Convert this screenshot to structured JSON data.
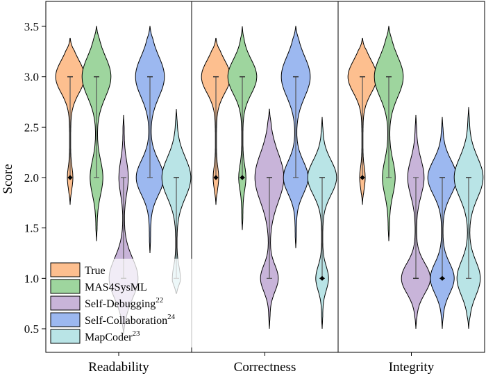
{
  "chart_data": {
    "type": "violin",
    "ylabel": "Score",
    "ylim": [
      0.4,
      3.65
    ],
    "yticks": [
      "0.5",
      "1.0",
      "1.5",
      "2.0",
      "2.5",
      "3.0",
      "3.5"
    ],
    "categories": [
      "Readability",
      "Correctness",
      "Integrity"
    ],
    "series": [
      {
        "name": "True",
        "sup": "",
        "color": "#fdbf8f",
        "values": [
          {
            "range": [
              1.73,
              3.38
            ],
            "median": 3.0,
            "q1": 2.0,
            "q3": 3.0,
            "diamond": 2.0,
            "modes": [
              [
                3.0,
                0.16,
                1.0
              ],
              [
                2.0,
                0.1,
                0.16
              ]
            ]
          },
          {
            "range": [
              1.73,
              3.38
            ],
            "median": 3.0,
            "q1": 2.0,
            "q3": 3.0,
            "diamond": 2.0,
            "modes": [
              [
                3.0,
                0.16,
                1.0
              ],
              [
                2.0,
                0.1,
                0.16
              ]
            ]
          },
          {
            "range": [
              1.73,
              3.38
            ],
            "median": 3.0,
            "q1": 2.0,
            "q3": 3.0,
            "diamond": 2.0,
            "modes": [
              [
                3.0,
                0.16,
                1.0
              ],
              [
                2.0,
                0.1,
                0.16
              ]
            ]
          }
        ]
      },
      {
        "name": "MAS4SysML",
        "sup": "",
        "color": "#9ed59e",
        "values": [
          {
            "range": [
              1.37,
              3.5
            ],
            "median": 3.0,
            "q1": 2.0,
            "q3": 3.0,
            "diamond": null,
            "modes": [
              [
                3.0,
                0.2,
                1.0
              ],
              [
                2.0,
                0.17,
                0.42
              ]
            ]
          },
          {
            "range": [
              1.48,
              3.5
            ],
            "median": 3.0,
            "q1": 2.0,
            "q3": 3.0,
            "diamond": 2.0,
            "modes": [
              [
                3.0,
                0.17,
                1.0
              ],
              [
                2.0,
                0.12,
                0.22
              ]
            ]
          },
          {
            "range": [
              1.37,
              3.5
            ],
            "median": 3.0,
            "q1": 2.0,
            "q3": 3.0,
            "diamond": null,
            "modes": [
              [
                3.0,
                0.2,
                1.0
              ],
              [
                2.0,
                0.17,
                0.42
              ]
            ]
          }
        ]
      },
      {
        "name": "Self-Debugging",
        "sup": "22",
        "color": "#c8b4d9",
        "values": [
          {
            "range": [
              0.45,
              2.62
            ],
            "median": 1.0,
            "q1": 1.0,
            "q3": 2.0,
            "diamond": null,
            "modes": [
              [
                1.0,
                0.2,
                1.0
              ],
              [
                2.0,
                0.16,
                0.3
              ]
            ]
          },
          {
            "range": [
              0.5,
              2.68
            ],
            "median": 2.0,
            "q1": 1.0,
            "q3": 2.0,
            "diamond": null,
            "modes": [
              [
                2.0,
                0.24,
                1.0
              ],
              [
                1.0,
                0.13,
                0.6
              ]
            ]
          },
          {
            "range": [
              0.5,
              2.62
            ],
            "median": 1.0,
            "q1": 1.0,
            "q3": 2.0,
            "diamond": null,
            "modes": [
              [
                1.0,
                0.15,
                1.0
              ],
              [
                2.0,
                0.18,
                0.55
              ]
            ]
          }
        ]
      },
      {
        "name": "Self-Collaboration",
        "sup": "24",
        "color": "#9cb8f0",
        "values": [
          {
            "range": [
              1.25,
              3.5
            ],
            "median": 3.0,
            "q1": 2.0,
            "q3": 3.0,
            "diamond": null,
            "modes": [
              [
                3.0,
                0.2,
                1.0
              ],
              [
                2.0,
                0.17,
                0.95
              ]
            ]
          },
          {
            "range": [
              1.3,
              3.5
            ],
            "median": 3.0,
            "q1": 2.0,
            "q3": 3.0,
            "diamond": null,
            "modes": [
              [
                3.0,
                0.2,
                1.0
              ],
              [
                2.0,
                0.16,
                0.85
              ]
            ]
          },
          {
            "range": [
              0.5,
              2.6
            ],
            "median": 2.0,
            "q1": 1.0,
            "q3": 2.0,
            "diamond": 1.0,
            "modes": [
              [
                2.0,
                0.17,
                1.0
              ],
              [
                1.0,
                0.15,
                0.82
              ]
            ]
          }
        ]
      },
      {
        "name": "MapCoder",
        "sup": "23",
        "color": "#b9e4e6",
        "values": [
          {
            "range": [
              0.85,
              2.68
            ],
            "median": 2.0,
            "q1": 1.0,
            "q3": 2.0,
            "diamond": null,
            "modes": [
              [
                2.0,
                0.2,
                1.0
              ],
              [
                1.0,
                0.12,
                0.25
              ]
            ]
          },
          {
            "range": [
              0.5,
              2.6
            ],
            "median": 2.0,
            "q1": 1.0,
            "q3": 2.0,
            "diamond": 1.0,
            "modes": [
              [
                2.0,
                0.17,
                1.0
              ],
              [
                1.0,
                0.12,
                0.42
              ]
            ]
          },
          {
            "range": [
              0.5,
              2.7
            ],
            "median": 2.0,
            "q1": 1.0,
            "q3": 2.0,
            "diamond": null,
            "modes": [
              [
                2.0,
                0.2,
                1.0
              ],
              [
                1.0,
                0.17,
                0.8
              ]
            ]
          }
        ]
      }
    ],
    "legend_position": "bottom-left",
    "grid": false
  }
}
